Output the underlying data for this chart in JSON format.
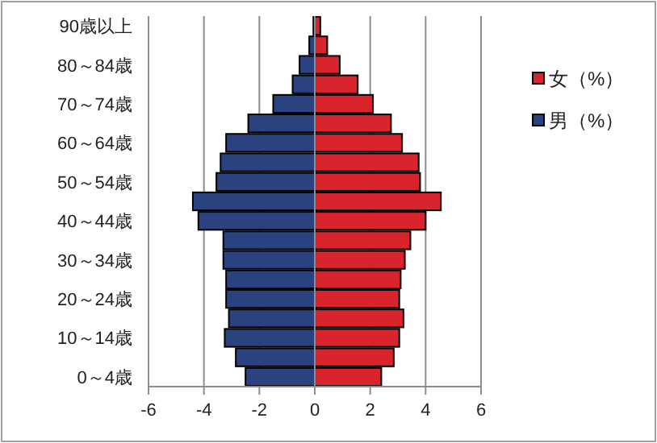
{
  "chart_data": {
    "type": "bar",
    "orientation": "horizontal",
    "categories": [
      "90歳以上",
      null,
      "80～84歳",
      null,
      "70～74歳",
      null,
      "60～64歳",
      null,
      "50～54歳",
      null,
      "40～44歳",
      null,
      "30～34歳",
      null,
      "20～24歳",
      null,
      "10～14歳",
      null,
      "0～4歳"
    ],
    "series": [
      {
        "name": "女（%）",
        "color": "#d9232d",
        "values": [
          0.2,
          0.45,
          0.9,
          1.55,
          2.1,
          2.75,
          3.15,
          3.75,
          3.8,
          4.55,
          4.0,
          3.45,
          3.25,
          3.1,
          3.05,
          3.2,
          3.05,
          2.85,
          2.4
        ]
      },
      {
        "name": "男（%）",
        "color": "#2b4280",
        "values": [
          -0.05,
          -0.2,
          -0.55,
          -0.8,
          -1.5,
          -2.4,
          -3.2,
          -3.4,
          -3.55,
          -4.4,
          -4.2,
          -3.3,
          -3.3,
          -3.2,
          -3.2,
          -3.1,
          -3.25,
          -2.85,
          -2.5
        ]
      }
    ],
    "xlim": [
      -6,
      6
    ],
    "xticks": [
      -6,
      -4,
      -2,
      0,
      2,
      4,
      6
    ],
    "stacked": true,
    "grid": "x",
    "legend": "right"
  }
}
